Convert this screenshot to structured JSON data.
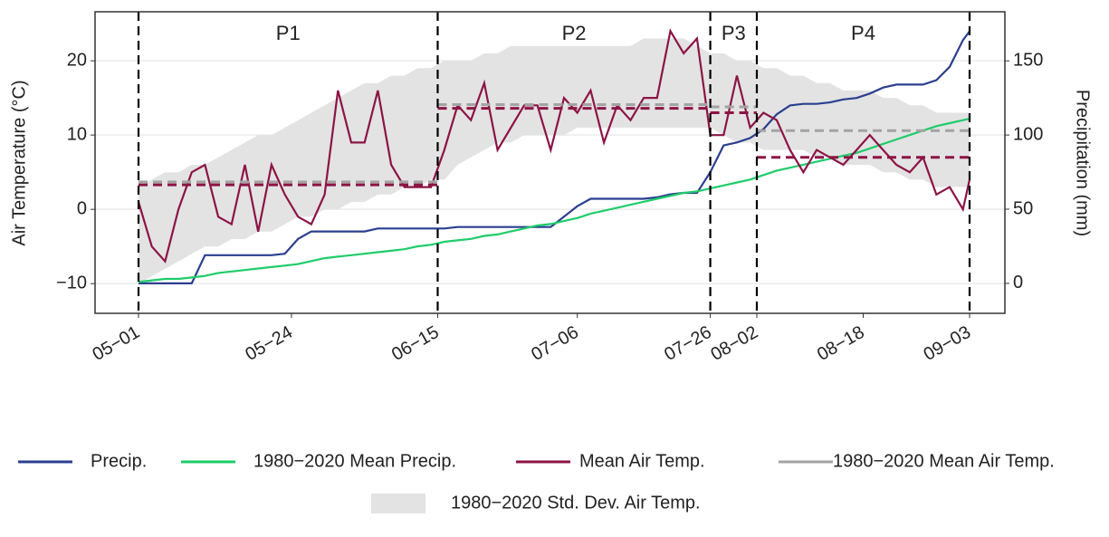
{
  "chart_data": {
    "type": "line",
    "y_label": "Air Temperature (°C)",
    "y2_label": "Precipitation (mm)",
    "x": [
      "05-01",
      "05-03",
      "05-05",
      "05-07",
      "05-09",
      "05-11",
      "05-13",
      "05-15",
      "05-17",
      "05-19",
      "05-21",
      "05-23",
      "05-25",
      "05-27",
      "05-29",
      "05-31",
      "06-02",
      "06-04",
      "06-06",
      "06-08",
      "06-10",
      "06-12",
      "06-14",
      "06-16",
      "06-18",
      "06-20",
      "06-22",
      "06-24",
      "06-26",
      "06-28",
      "06-30",
      "07-02",
      "07-04",
      "07-06",
      "07-08",
      "07-10",
      "07-12",
      "07-14",
      "07-16",
      "07-18",
      "07-20",
      "07-22",
      "07-24",
      "07-26",
      "07-28",
      "07-30",
      "08-01",
      "08-03",
      "08-05",
      "08-07",
      "08-09",
      "08-11",
      "08-13",
      "08-15",
      "08-17",
      "08-19",
      "08-21",
      "08-23",
      "08-25",
      "08-27",
      "08-29",
      "08-31",
      "09-02",
      "09-03"
    ],
    "xticks": [
      {
        "value": "05-01",
        "label": "05−01"
      },
      {
        "value": "05-24",
        "label": "05−24"
      },
      {
        "value": "06-15",
        "label": "06−15"
      },
      {
        "value": "07-06",
        "label": "07−06"
      },
      {
        "value": "07-26",
        "label": "07−26"
      },
      {
        "value": "08-02",
        "label": "08−02"
      },
      {
        "value": "08-18",
        "label": "08−18"
      },
      {
        "value": "09-03",
        "label": "09−03"
      }
    ],
    "ylim": [
      -14,
      26.6
    ],
    "yticks": [
      {
        "value": -10,
        "label": "−10"
      },
      0,
      10,
      20
    ],
    "y2lim": [
      -20.2,
      183.1
    ],
    "y2ticks": [
      0,
      50,
      100,
      150
    ],
    "grid": true,
    "legend": "bottom",
    "period_bounds": [
      "05-01",
      "06-15",
      "07-26",
      "08-02",
      "09-03"
    ],
    "periods": [
      "P1",
      "P2",
      "P3",
      "P4"
    ],
    "band": {
      "name": "1980−2020 Std. Dev. Air Temp.",
      "color": "#e3e3e3",
      "lower": [
        -10,
        -9,
        -8,
        -7,
        -6,
        -5,
        -5,
        -4,
        -4,
        -3,
        -3,
        -2,
        -1,
        -1,
        0,
        0,
        1,
        1,
        2,
        2,
        3,
        3,
        4,
        4,
        6,
        7,
        8,
        9,
        9,
        10,
        10,
        10,
        10,
        11,
        11,
        11,
        11,
        11,
        11,
        11,
        11,
        11,
        11,
        11,
        10,
        9,
        9,
        8,
        8,
        8,
        8,
        7,
        7,
        6,
        6,
        6,
        5,
        5,
        4,
        4,
        3,
        3,
        3,
        3
      ],
      "upper": [
        3,
        4,
        5,
        5,
        6,
        6,
        7,
        8,
        9,
        10,
        10,
        11,
        12,
        13,
        14,
        15,
        16,
        17,
        17,
        18,
        18,
        19,
        19,
        20,
        20,
        20,
        21,
        21,
        22,
        22,
        22,
        22,
        22,
        22,
        22,
        22,
        22,
        22,
        23,
        23,
        23,
        23,
        22,
        21,
        21,
        20,
        20,
        19,
        19,
        18,
        18,
        17,
        17,
        16,
        16,
        16,
        15,
        15,
        14,
        14,
        13,
        13,
        13,
        13
      ]
    },
    "series": [
      {
        "name": "Precip.",
        "color": "#2b3f8f",
        "axis": "y2",
        "values": [
          0,
          0,
          0,
          0,
          0,
          19,
          19,
          19,
          19,
          19,
          19,
          20,
          30,
          35,
          35,
          35,
          35,
          35,
          37,
          37,
          37,
          37,
          37,
          37,
          38,
          38,
          38,
          38,
          38,
          38,
          38,
          38,
          45,
          52,
          57,
          57,
          57,
          57,
          57,
          58,
          60,
          61,
          61,
          75,
          93,
          95,
          98,
          104,
          114,
          120,
          121,
          121,
          122,
          124,
          125,
          128,
          132,
          134,
          134,
          134,
          137,
          146,
          164,
          170
        ]
      },
      {
        "name": "1980−2020 Mean Precip.",
        "color": "#1fcc6a",
        "axis": "y2",
        "values": [
          1,
          2,
          3,
          3,
          4,
          5,
          7,
          8,
          9,
          10,
          11,
          12,
          13,
          15,
          17,
          18,
          19,
          20,
          21,
          22,
          23,
          25,
          26,
          28,
          29,
          30,
          32,
          33,
          35,
          37,
          39,
          40,
          42,
          44,
          47,
          49,
          51,
          53,
          55,
          57,
          59,
          61,
          62,
          64,
          66,
          68,
          70,
          73,
          76,
          78,
          80,
          82,
          84,
          86,
          88,
          91,
          94,
          97,
          100,
          103,
          106,
          108,
          110,
          111
        ]
      },
      {
        "name": "Mean Air Temp.",
        "color": "#8c1446",
        "axis": "y",
        "values": [
          1,
          -5,
          -7,
          0,
          5,
          6,
          -1,
          -2,
          6,
          -3,
          6,
          2,
          -1,
          -2,
          2,
          16,
          9,
          9,
          16,
          6,
          3,
          3,
          3,
          8,
          14,
          12,
          17,
          8,
          11,
          14,
          14,
          8,
          15,
          13,
          16,
          9,
          14,
          12,
          15,
          15,
          24,
          21,
          23,
          10,
          10,
          18,
          11,
          13,
          12,
          8,
          5,
          8,
          7,
          6,
          8,
          10,
          8,
          6,
          5,
          7,
          2,
          3,
          0,
          4
        ],
        "period_means": [
          3.3,
          13.6,
          13.0,
          7.0
        ]
      },
      {
        "name": "1980−2020 Mean Air Temp.",
        "color": "#a3a3a3",
        "axis": "y",
        "period_means": [
          3.7,
          14.1,
          13.8,
          10.6
        ]
      }
    ]
  }
}
